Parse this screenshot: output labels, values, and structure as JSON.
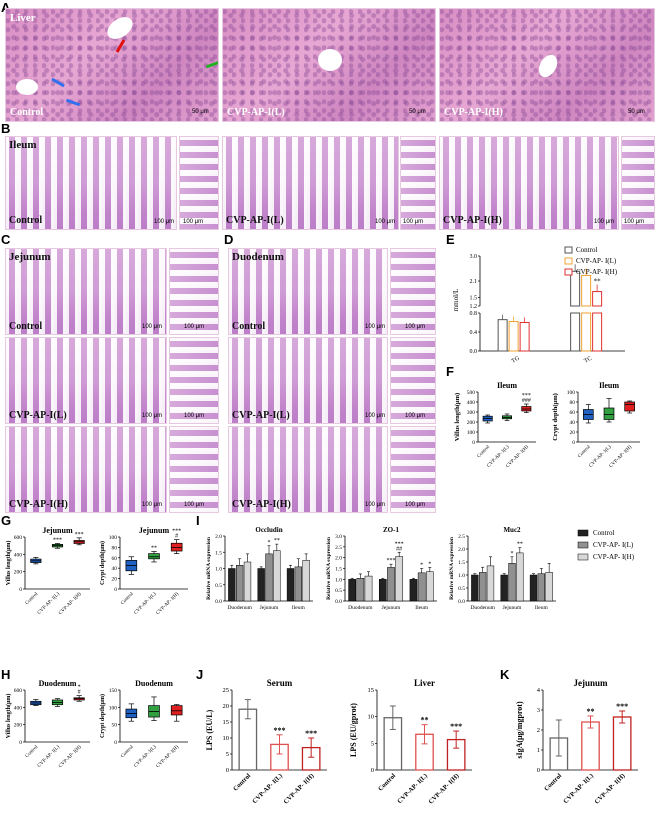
{
  "panels": {
    "A": "A",
    "B": "B",
    "C": "C",
    "D": "D",
    "E": "E",
    "F": "F",
    "G": "G",
    "H": "H",
    "I": "I",
    "J": "J",
    "K": "K"
  },
  "micro": {
    "liver_tissue": "Liver",
    "ileum_tissue": "Ileum",
    "jejunum_tissue": "Jejunum",
    "duodenum_tissue": "Duodenum",
    "control": "Control",
    "low": "CVP-AP-I(L)",
    "high": "CVP-AP-I(H)",
    "scale_50": "50 μm",
    "scale_100": "100 μm"
  },
  "chart_data": [
    {
      "id": "E",
      "type": "bar",
      "ylabel": "mmol/L",
      "categories": [
        "TG",
        "TC"
      ],
      "ylim_low": [
        0,
        0.8
      ],
      "ylim_high": [
        1.2,
        3.0
      ],
      "yticks_low": [
        "0.0",
        "0.4",
        "0.8"
      ],
      "yticks_high": [
        "1.2",
        "1.5",
        "2.1",
        "3.0"
      ],
      "series": [
        {
          "name": "Control",
          "color": "#555555",
          "values": [
            0.66,
            2.45
          ]
        },
        {
          "name": "CVP-AP- I(L)",
          "color": "#f0a030",
          "values": [
            0.62,
            2.3
          ]
        },
        {
          "name": "CVP-AP- I(H)",
          "color": "#e03030",
          "values": [
            0.6,
            1.72
          ]
        }
      ],
      "annotations": [
        {
          "series": 2,
          "category": 1,
          "text": "**"
        }
      ]
    },
    {
      "id": "F_villus",
      "type": "box",
      "title": "Ileum",
      "ylabel": "Villus length(μm)",
      "ylim": [
        0,
        500
      ],
      "yticks": [
        "0",
        "100",
        "200",
        "300",
        "400",
        "500"
      ],
      "categories": [
        "Control",
        "CVP-AP- I(L)",
        "CVP-AP- I(H)"
      ],
      "colors": [
        "#2060c0",
        "#30a040",
        "#e02020"
      ],
      "boxes": [
        [
          190,
          210,
          235,
          258,
          270
        ],
        [
          215,
          232,
          245,
          262,
          280
        ],
        [
          295,
          310,
          330,
          355,
          380
        ]
      ],
      "annotations": [
        {
          "category": 2,
          "text": "###"
        },
        {
          "category": 2,
          "text": "***"
        }
      ]
    },
    {
      "id": "F_crypt",
      "type": "box",
      "title": "Ileum",
      "ylabel": "Crypt depth(μm)",
      "ylim": [
        0,
        100
      ],
      "yticks": [
        "0",
        "20",
        "40",
        "60",
        "80",
        "100"
      ],
      "categories": [
        "Control",
        "CVP-AP- I(L)",
        "CVP-AP- I(H)"
      ],
      "colors": [
        "#2060c0",
        "#30a040",
        "#e02020"
      ],
      "boxes": [
        [
          38,
          45,
          55,
          65,
          75
        ],
        [
          40,
          45,
          55,
          68,
          87
        ],
        [
          58,
          62,
          75,
          80,
          82
        ]
      ],
      "annotations": []
    },
    {
      "id": "G_villus",
      "type": "box",
      "title": "Jejunum",
      "ylabel": "Villus length(μm)",
      "ylim": [
        0,
        600
      ],
      "yticks": [
        "0",
        "200",
        "400",
        "600"
      ],
      "categories": [
        "Control",
        "CVP-AP- I(L)",
        "CVP-AP- I(H)"
      ],
      "colors": [
        "#2060c0",
        "#30a040",
        "#e02020"
      ],
      "boxes": [
        [
          290,
          305,
          325,
          345,
          365
        ],
        [
          470,
          485,
          500,
          515,
          525
        ],
        [
          510,
          525,
          545,
          560,
          590
        ]
      ],
      "annotations": [
        {
          "category": 1,
          "text": "***"
        },
        {
          "category": 2,
          "text": "***"
        }
      ]
    },
    {
      "id": "G_crypt",
      "type": "box",
      "title": "Jejunum",
      "ylabel": "Crypt depth(μm)",
      "ylim": [
        0,
        100
      ],
      "yticks": [
        "0",
        "20",
        "40",
        "60",
        "80",
        "100"
      ],
      "categories": [
        "Control",
        "CVP-AP- I(L)",
        "CVP-AP- I(H)"
      ],
      "colors": [
        "#2060c0",
        "#30a040",
        "#e02020"
      ],
      "boxes": [
        [
          28,
          35,
          45,
          55,
          62
        ],
        [
          52,
          58,
          62,
          68,
          72
        ],
        [
          68,
          73,
          80,
          88,
          95
        ]
      ],
      "annotations": [
        {
          "category": 1,
          "text": "**"
        },
        {
          "category": 2,
          "text": "#"
        },
        {
          "category": 2,
          "text": "***"
        }
      ]
    },
    {
      "id": "H_villus",
      "type": "box",
      "title": "Duodenum",
      "ylabel": "Villus length(μm)",
      "ylim": [
        0,
        600
      ],
      "yticks": [
        "0",
        "200",
        "400",
        "600"
      ],
      "categories": [
        "Control",
        "CVP-AP- I(L)",
        "CVP-AP- I(H)"
      ],
      "colors": [
        "#2060c0",
        "#30a040",
        "#e02020"
      ],
      "boxes": [
        [
          420,
          430,
          450,
          470,
          490
        ],
        [
          410,
          430,
          455,
          485,
          500
        ],
        [
          470,
          485,
          500,
          510,
          535
        ]
      ],
      "annotations": [
        {
          "category": 2,
          "text": "#"
        },
        {
          "category": 2,
          "text": "*"
        }
      ]
    },
    {
      "id": "H_crypt",
      "type": "box",
      "title": "Duodenum",
      "ylabel": "Crypt depth(μm)",
      "ylim": [
        0,
        150
      ],
      "yticks": [
        "0",
        "50",
        "100",
        "150"
      ],
      "categories": [
        "Control",
        "CVP-AP- I(L)",
        "CVP-AP- I(H)"
      ],
      "colors": [
        "#2060c0",
        "#30a040",
        "#e02020"
      ],
      "boxes": [
        [
          60,
          70,
          82,
          95,
          110
        ],
        [
          62,
          72,
          88,
          105,
          130
        ],
        [
          60,
          78,
          90,
          105,
          108
        ]
      ],
      "annotations": []
    },
    {
      "id": "I_occludin",
      "type": "bar",
      "title": "Occludin",
      "ylabel": "Relative mRNA expression",
      "ylim": [
        0,
        2.0
      ],
      "yticks": [
        "0.0",
        "0.5",
        "1.0",
        "1.5",
        "2.0"
      ],
      "categories": [
        "Duodenum",
        "Jejunum",
        "Ileum"
      ],
      "series": [
        {
          "name": "Control",
          "color": "#222222",
          "values": [
            1.0,
            1.0,
            1.0
          ]
        },
        {
          "name": "CVP-AP- I(L)",
          "color": "#909090",
          "values": [
            1.1,
            1.45,
            1.05
          ]
        },
        {
          "name": "CVP-AP- I(H)",
          "color": "#d8d8d8",
          "values": [
            1.2,
            1.55,
            1.25
          ]
        }
      ],
      "errors": [
        [
          0.1,
          0.05,
          0.1
        ],
        [
          0.2,
          0.25,
          0.25
        ],
        [
          0.25,
          0.2,
          0.2
        ]
      ],
      "annotations": [
        {
          "series": 1,
          "category": 1,
          "text": "*"
        },
        {
          "series": 2,
          "category": 1,
          "text": "**"
        }
      ]
    },
    {
      "id": "I_zo1",
      "type": "bar",
      "title": "ZO-1",
      "ylabel": "Relative mRNA expression",
      "ylim": [
        0,
        3.0
      ],
      "yticks": [
        "0.0",
        "0.5",
        "1.0",
        "1.5",
        "2.0",
        "2.5",
        "3.0"
      ],
      "categories": [
        "Duodenum",
        "Jejunum",
        "Ileum"
      ],
      "series": [
        {
          "name": "Control",
          "color": "#222222",
          "values": [
            1.0,
            1.0,
            1.0
          ]
        },
        {
          "name": "CVP-AP- I(L)",
          "color": "#909090",
          "values": [
            1.05,
            1.55,
            1.3
          ]
        },
        {
          "name": "CVP-AP- I(H)",
          "color": "#d8d8d8",
          "values": [
            1.15,
            2.05,
            1.35
          ]
        }
      ],
      "errors": [
        [
          0.05,
          0.05,
          0.05
        ],
        [
          0.2,
          0.15,
          0.2
        ],
        [
          0.2,
          0.2,
          0.2
        ]
      ],
      "annotations": [
        {
          "series": 1,
          "category": 1,
          "text": "***"
        },
        {
          "series": 2,
          "category": 1,
          "text": "##"
        },
        {
          "series": 2,
          "category": 1,
          "text": "***"
        },
        {
          "series": 1,
          "category": 2,
          "text": "*"
        },
        {
          "series": 2,
          "category": 2,
          "text": "*"
        }
      ]
    },
    {
      "id": "I_muc2",
      "type": "bar",
      "title": "Muc2",
      "ylabel": "Relative mRNA expression",
      "ylim": [
        0,
        2.5
      ],
      "yticks": [
        "0.0",
        "0.5",
        "1.0",
        "1.5",
        "2.0",
        "2.5"
      ],
      "categories": [
        "Duodenum",
        "Jejunum",
        "Ileum"
      ],
      "series": [
        {
          "name": "Control",
          "color": "#222222",
          "values": [
            1.0,
            1.0,
            1.0
          ]
        },
        {
          "name": "CVP-AP- I(L)",
          "color": "#909090",
          "values": [
            1.1,
            1.45,
            1.05
          ]
        },
        {
          "name": "CVP-AP- I(H)",
          "color": "#d8d8d8",
          "values": [
            1.35,
            1.85,
            1.1
          ]
        }
      ],
      "errors": [
        [
          0.05,
          0.05,
          0.05
        ],
        [
          0.2,
          0.25,
          0.2
        ],
        [
          0.35,
          0.2,
          0.35
        ]
      ],
      "annotations": [
        {
          "series": 1,
          "category": 1,
          "text": "*"
        },
        {
          "series": 2,
          "category": 1,
          "text": "**"
        }
      ]
    },
    {
      "id": "J_serum",
      "type": "bar",
      "title": "Serum",
      "ylabel": "LPS (EU/L)",
      "ylim": [
        0,
        25
      ],
      "yticks": [
        "0",
        "5",
        "10",
        "15",
        "20",
        "25"
      ],
      "categories": [
        "Control",
        "CVP-AP- I(L)",
        "CVP-AP- I(H)"
      ],
      "colors": [
        "#666666",
        "#e05050",
        "#c02020"
      ],
      "values": [
        19,
        8,
        7
      ],
      "errors": [
        3,
        3,
        3
      ],
      "annotations": [
        {
          "category": 1,
          "text": "***"
        },
        {
          "category": 2,
          "text": "***"
        }
      ]
    },
    {
      "id": "J_liver",
      "type": "bar",
      "title": "Liver",
      "ylabel": "LPS (EU/gprot)",
      "ylim": [
        0,
        15
      ],
      "yticks": [
        "0",
        "5",
        "10",
        "15"
      ],
      "categories": [
        "Control",
        "CVP-AP- I(L)",
        "CVP-AP- I(H)"
      ],
      "colors": [
        "#666666",
        "#e05050",
        "#c02020"
      ],
      "values": [
        9.8,
        6.7,
        5.7
      ],
      "errors": [
        2.2,
        1.8,
        1.6
      ],
      "annotations": [
        {
          "category": 1,
          "text": "**"
        },
        {
          "category": 2,
          "text": "***"
        }
      ]
    },
    {
      "id": "K_jejunum",
      "type": "bar",
      "title": "Jejunum",
      "ylabel": "sIgA(μg/mgprot)",
      "ylim": [
        0,
        4
      ],
      "yticks": [
        "0",
        "1",
        "2",
        "3",
        "4"
      ],
      "categories": [
        "Control",
        "CVP-AP- I(L)",
        "CVP-AP- I(H)"
      ],
      "colors": [
        "#666666",
        "#e05050",
        "#c02020"
      ],
      "values": [
        1.6,
        2.4,
        2.65
      ],
      "errors": [
        0.9,
        0.3,
        0.3
      ],
      "annotations": [
        {
          "category": 1,
          "text": "**"
        },
        {
          "category": 2,
          "text": "***"
        }
      ]
    }
  ],
  "legend_I": [
    {
      "name": "Control",
      "color": "#222222"
    },
    {
      "name": "CVP-AP- I(L)",
      "color": "#909090"
    },
    {
      "name": "CVP-AP- I(H)",
      "color": "#d8d8d8"
    }
  ]
}
